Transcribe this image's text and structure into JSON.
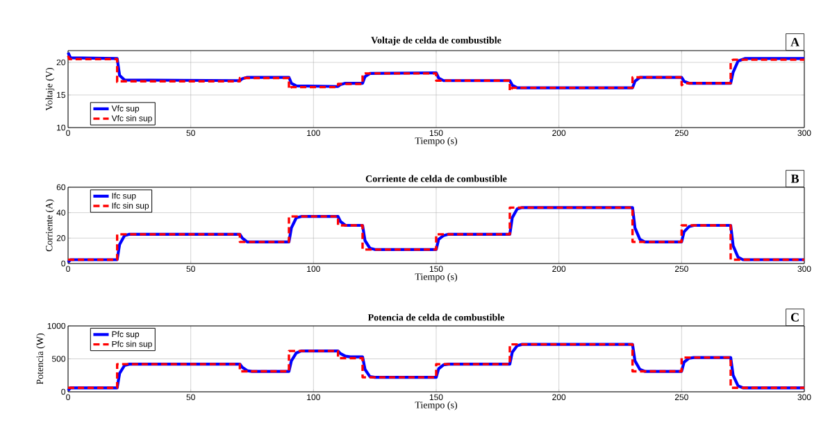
{
  "chart_data": [
    {
      "type": "line",
      "title": "Voltaje de celda de combustible",
      "xlabel": "Tiempo (s)",
      "ylabel": "Voltaje (V)",
      "xlim": [
        0,
        300
      ],
      "ylim": [
        10,
        21.8
      ],
      "xticks": [
        0,
        50,
        100,
        150,
        200,
        250,
        300
      ],
      "yticks": [
        10,
        15,
        20
      ],
      "grid": true,
      "legend": "bottom left",
      "annotations": [
        "A"
      ],
      "series": [
        {
          "name": "Vfc sup",
          "color": "#0000ff",
          "line_style": "solid",
          "x": [
            0,
            1,
            20,
            21,
            23,
            70,
            71,
            73,
            90,
            91,
            93,
            110,
            111,
            113,
            120,
            121,
            123,
            150,
            151,
            153,
            180,
            181,
            183,
            230,
            231,
            233,
            250,
            251,
            253,
            270,
            271,
            273,
            276,
            300
          ],
          "values": [
            21.5,
            20.7,
            20.6,
            18.0,
            17.3,
            17.2,
            17.5,
            17.7,
            17.7,
            16.8,
            16.4,
            16.3,
            16.6,
            16.8,
            16.8,
            17.8,
            18.3,
            18.4,
            17.6,
            17.2,
            17.2,
            16.5,
            16.1,
            16.1,
            17.1,
            17.7,
            17.7,
            17.1,
            16.8,
            16.8,
            18.5,
            20.2,
            20.6,
            20.6
          ]
        },
        {
          "name": "Vfc sin sup",
          "color": "#ff0000",
          "line_style": "dashed",
          "x": [
            0,
            0.5,
            20,
            20,
            21,
            70,
            70,
            90,
            90,
            91,
            110,
            110,
            120,
            120,
            121,
            150,
            150,
            180,
            180,
            181,
            230,
            230,
            250,
            250,
            251,
            270,
            270,
            271,
            300
          ],
          "values": [
            21.0,
            20.5,
            20.5,
            17.0,
            17.1,
            17.1,
            17.6,
            17.6,
            15.9,
            16.2,
            16.2,
            16.7,
            16.7,
            18.2,
            18.3,
            18.3,
            17.2,
            17.2,
            15.6,
            16.1,
            16.1,
            17.7,
            17.7,
            16.5,
            16.8,
            16.8,
            20.2,
            20.4,
            20.4
          ]
        }
      ]
    },
    {
      "type": "line",
      "title": "Corriente de celda de combustible",
      "xlabel": "Tiempo (s)",
      "ylabel": "Corriente (A)",
      "xlim": [
        0,
        300
      ],
      "ylim": [
        0,
        60
      ],
      "xticks": [
        0,
        50,
        100,
        150,
        200,
        250,
        300
      ],
      "yticks": [
        0,
        20,
        40,
        60
      ],
      "grid": true,
      "legend": "top left",
      "annotations": [
        "B"
      ],
      "series": [
        {
          "name": "Ifc sup",
          "color": "#0000ff",
          "line_style": "solid",
          "x": [
            0,
            1,
            20,
            21,
            23,
            25,
            70,
            71,
            73,
            90,
            91,
            93,
            95,
            110,
            111,
            113,
            120,
            121,
            123,
            125,
            150,
            151,
            153,
            155,
            180,
            181,
            183,
            185,
            230,
            231,
            233,
            235,
            250,
            251,
            253,
            255,
            270,
            271,
            273,
            275,
            300
          ],
          "values": [
            1,
            3,
            3,
            15,
            22,
            23,
            23,
            20,
            17,
            17,
            28,
            36,
            37,
            37,
            33,
            30,
            30,
            18,
            12,
            11,
            11,
            19,
            22,
            23,
            23,
            36,
            43,
            44,
            44,
            28,
            19,
            17,
            17,
            25,
            29,
            30,
            30,
            14,
            5,
            3,
            3
          ]
        },
        {
          "name": "Ifc sin sup",
          "color": "#ff0000",
          "line_style": "dashed",
          "x": [
            0,
            20,
            20,
            70,
            70,
            90,
            90,
            110,
            110,
            120,
            120,
            150,
            150,
            180,
            180,
            230,
            230,
            250,
            250,
            270,
            270,
            300
          ],
          "values": [
            3,
            3,
            23,
            23,
            17,
            17,
            37,
            37,
            30,
            30,
            11,
            11,
            23,
            23,
            44,
            44,
            17,
            17,
            30,
            30,
            3,
            3
          ]
        }
      ]
    },
    {
      "type": "line",
      "title": "Potencia de celda de combustible",
      "xlabel": "Tiempo (s)",
      "ylabel": "Potencia (W)",
      "xlim": [
        0,
        300
      ],
      "ylim": [
        0,
        1000
      ],
      "xticks": [
        0,
        50,
        100,
        150,
        200,
        250,
        300
      ],
      "yticks": [
        0,
        500,
        1000
      ],
      "grid": true,
      "legend": "top left",
      "annotations": [
        "C"
      ],
      "series": [
        {
          "name": "Pfc sup",
          "color": "#0000ff",
          "line_style": "solid",
          "x": [
            0,
            1,
            20,
            21,
            23,
            25,
            70,
            71,
            73,
            75,
            90,
            91,
            93,
            95,
            110,
            111,
            113,
            115,
            120,
            121,
            123,
            125,
            150,
            151,
            153,
            155,
            180,
            181,
            183,
            185,
            230,
            231,
            233,
            235,
            250,
            251,
            253,
            255,
            270,
            271,
            273,
            275,
            300
          ],
          "values": [
            20,
            60,
            60,
            280,
            400,
            420,
            420,
            370,
            320,
            310,
            310,
            470,
            590,
            620,
            620,
            580,
            540,
            530,
            530,
            340,
            230,
            220,
            220,
            350,
            410,
            420,
            420,
            600,
            700,
            720,
            720,
            470,
            340,
            310,
            310,
            450,
            510,
            520,
            520,
            250,
            90,
            60,
            60
          ]
        },
        {
          "name": "Pfc sin sup",
          "color": "#ff0000",
          "line_style": "dashed",
          "x": [
            0,
            20,
            20,
            70,
            70,
            90,
            90,
            110,
            110,
            120,
            120,
            150,
            150,
            180,
            180,
            230,
            230,
            250,
            250,
            270,
            270,
            300
          ],
          "values": [
            60,
            60,
            420,
            420,
            310,
            310,
            620,
            620,
            510,
            510,
            220,
            220,
            420,
            420,
            720,
            720,
            310,
            310,
            520,
            520,
            60,
            60
          ]
        }
      ]
    }
  ]
}
